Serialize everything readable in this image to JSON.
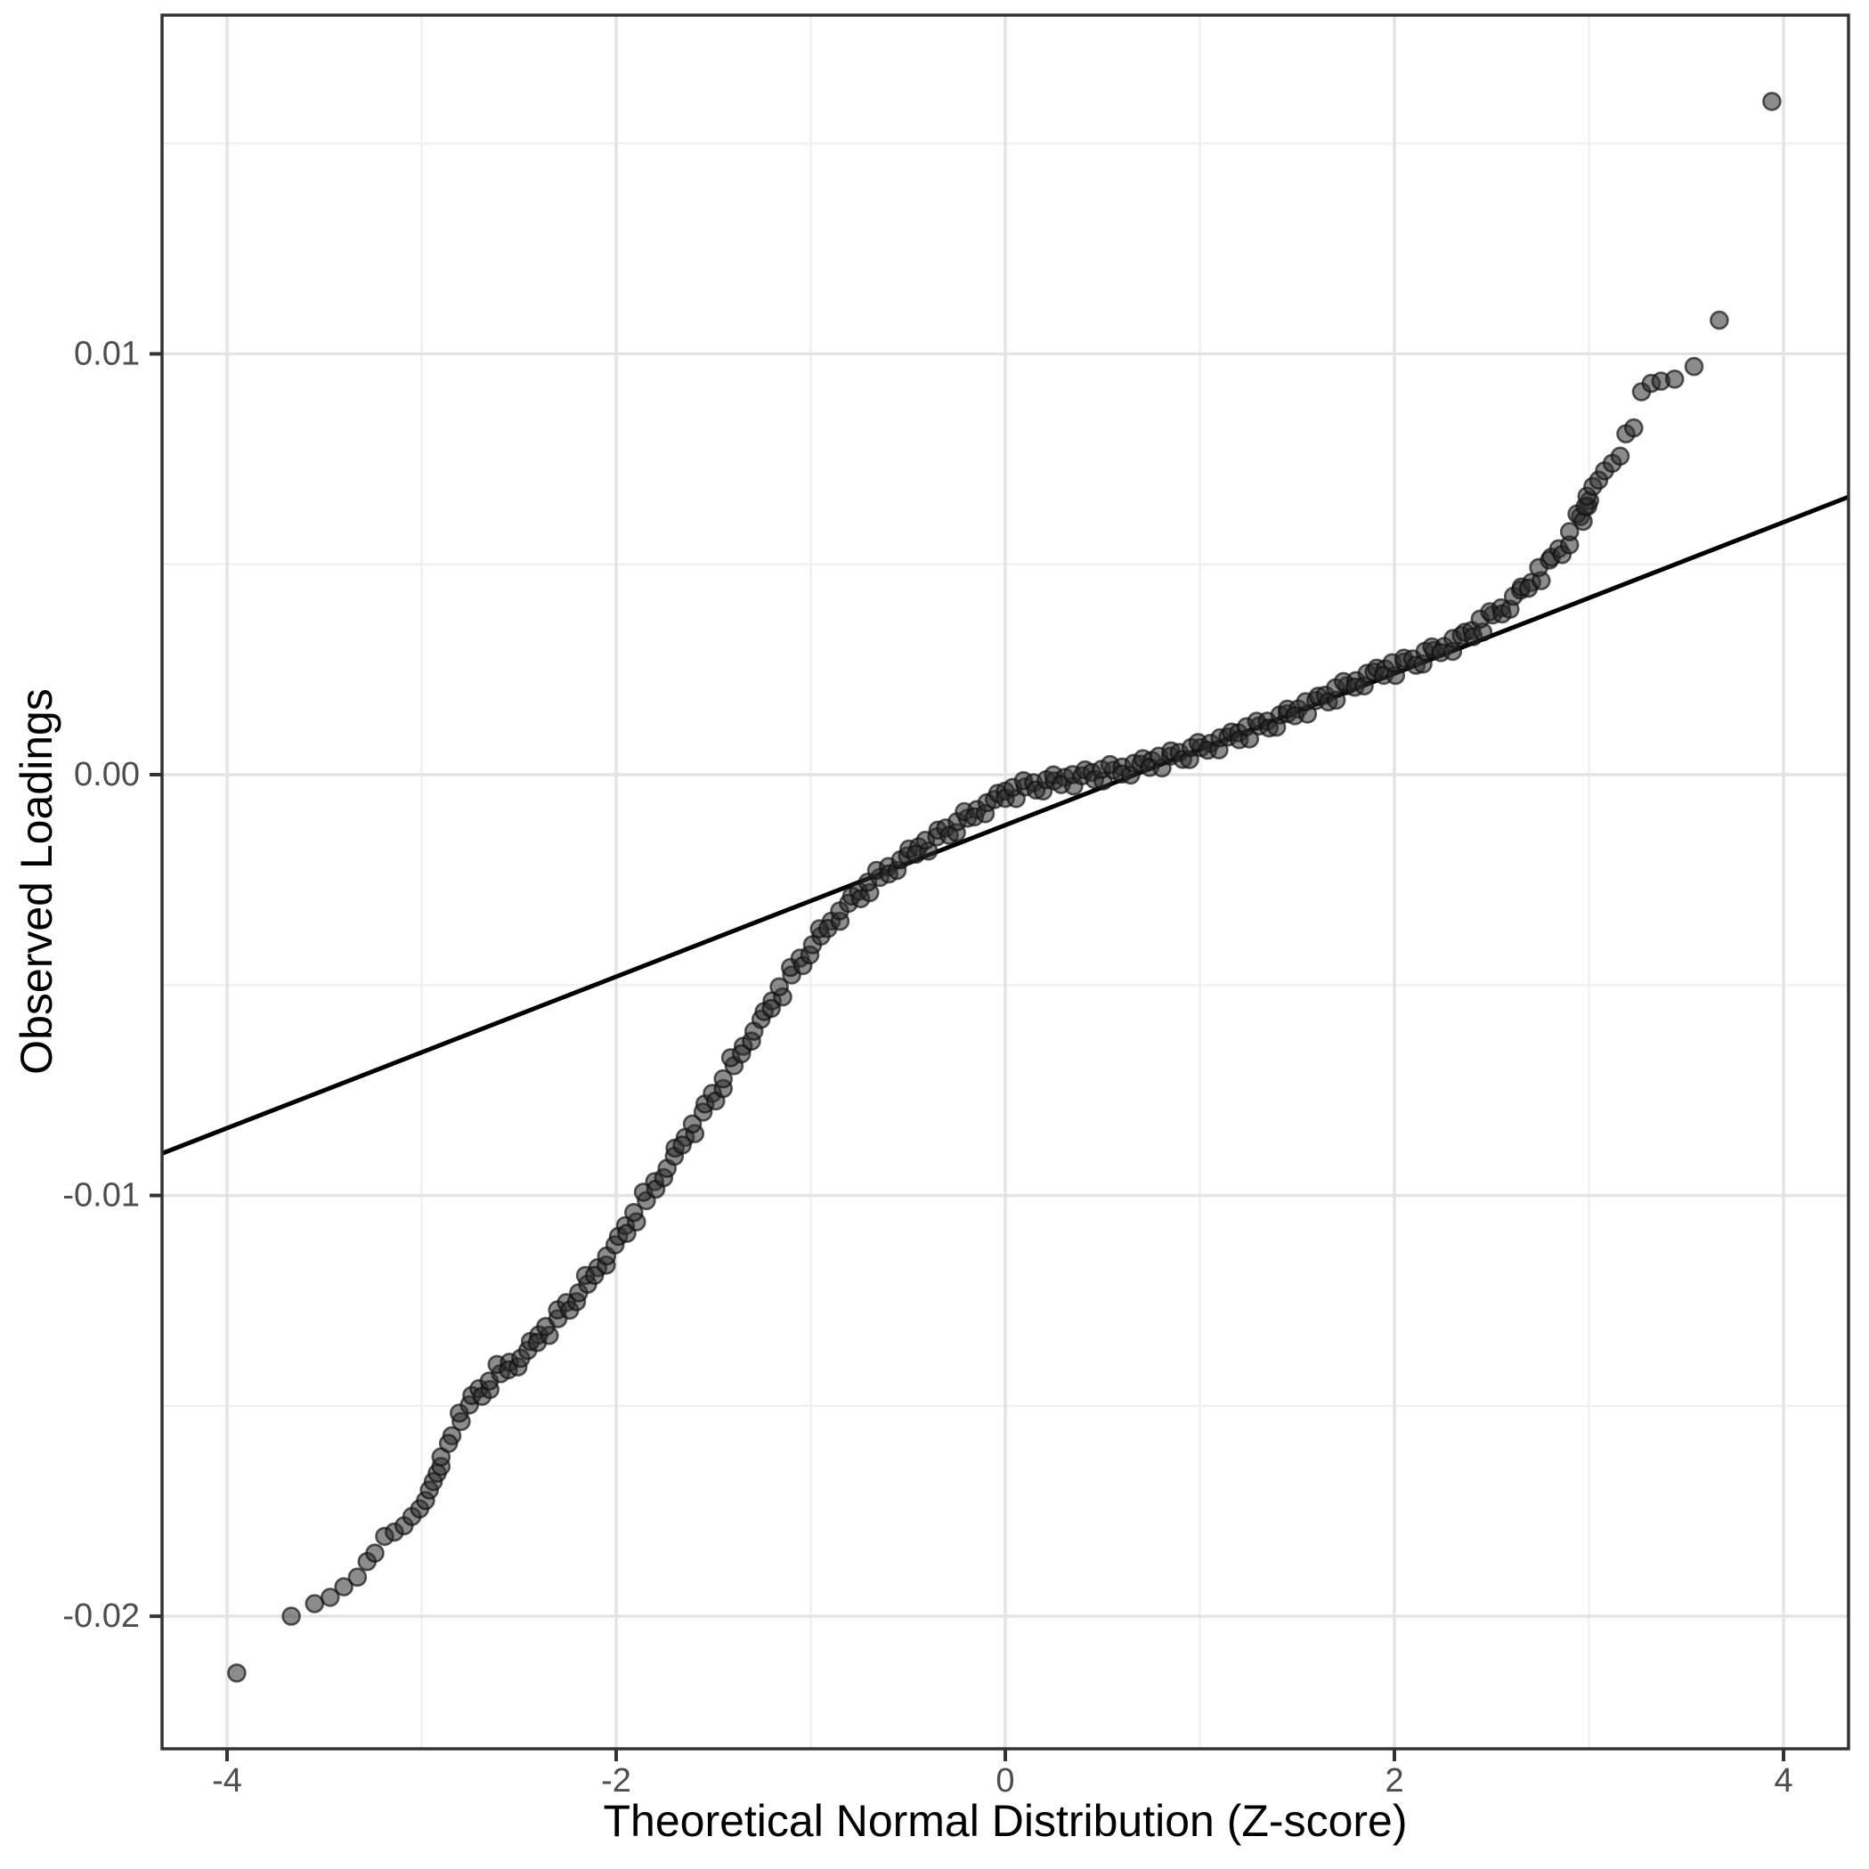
{
  "chart_data": {
    "type": "scatter",
    "title": "",
    "xlabel": "Theoretical Normal Distribution (Z-score)",
    "ylabel": "Observed Loadings",
    "x_tick_values": [
      -4,
      -2,
      0,
      2,
      4
    ],
    "x_tick_labels": [
      "-4",
      "-2",
      "0",
      "2",
      "4"
    ],
    "y_tick_values": [
      0.01,
      0.0,
      -0.01,
      -0.02
    ],
    "y_tick_labels": [
      "0.01",
      "0.00",
      "-0.01",
      "-0.02"
    ],
    "x_minor_gridlines": [
      -3,
      -1,
      1,
      3
    ],
    "y_minor_gridlines": [
      0.015,
      0.005,
      -0.005,
      -0.015
    ],
    "xlim": [
      -4.334,
      4.334
    ],
    "ylim": [
      -0.02315,
      0.01805
    ],
    "grid": "major+minor",
    "legend": "none",
    "point_color": "#2e2e2e",
    "line_color": "#000000",
    "reference_line": {
      "intercept": -0.0012,
      "slope": 0.0018
    },
    "series": [
      {
        "name": "observed-vs-theoretical-quantiles",
        "lower_tail_points": [
          [
            -3.95,
            -0.02135
          ],
          [
            -3.67,
            -0.02
          ],
          [
            -3.55,
            -0.0197
          ],
          [
            -3.47,
            -0.01955
          ],
          [
            -3.4,
            -0.0193
          ],
          [
            -3.33,
            -0.01907
          ],
          [
            -3.28,
            -0.0187
          ],
          [
            -3.24,
            -0.0185
          ],
          [
            -3.19,
            -0.0181
          ],
          [
            -3.14,
            -0.018
          ],
          [
            -3.09,
            -0.01785
          ],
          [
            -3.05,
            -0.01763
          ],
          [
            -3.01,
            -0.01745
          ],
          [
            -2.98,
            -0.01725
          ],
          [
            -2.96,
            -0.017
          ],
          [
            -2.94,
            -0.0168
          ],
          [
            -2.92,
            -0.0166
          ]
        ],
        "band_points": [
          [
            -2.9,
            -0.0164
          ],
          [
            -2.85,
            -0.0158
          ],
          [
            -2.8,
            -0.0152
          ],
          [
            -2.75,
            -0.01494
          ],
          [
            -2.7,
            -0.01468
          ],
          [
            -2.65,
            -0.01444
          ],
          [
            -2.6,
            -0.0142
          ],
          [
            -2.55,
            -0.01405
          ],
          [
            -2.5,
            -0.0139
          ],
          [
            -2.45,
            -0.01365
          ],
          [
            -2.4,
            -0.0134
          ],
          [
            -2.35,
            -0.01315
          ],
          [
            -2.3,
            -0.0129
          ],
          [
            -2.25,
            -0.01263
          ],
          [
            -2.2,
            -0.01235
          ],
          [
            -2.15,
            -0.01208
          ],
          [
            -2.1,
            -0.0118
          ],
          [
            -2.05,
            -0.01148
          ],
          [
            -2.0,
            -0.01115
          ],
          [
            -1.95,
            -0.0108
          ],
          [
            -1.9,
            -0.01045
          ],
          [
            -1.85,
            -0.0101
          ],
          [
            -1.8,
            -0.00975
          ],
          [
            -1.75,
            -0.0094
          ],
          [
            -1.7,
            -0.00905
          ],
          [
            -1.65,
            -0.0087
          ],
          [
            -1.6,
            -0.00835
          ],
          [
            -1.55,
            -0.008
          ],
          [
            -1.5,
            -0.00765
          ],
          [
            -1.45,
            -0.00728
          ],
          [
            -1.4,
            -0.0069
          ],
          [
            -1.35,
            -0.00653
          ],
          [
            -1.3,
            -0.00615
          ],
          [
            -1.25,
            -0.0058
          ],
          [
            -1.2,
            -0.00545
          ],
          [
            -1.15,
            -0.0051
          ],
          [
            -1.1,
            -0.00475
          ],
          [
            -1.05,
            -0.00443
          ],
          [
            -1.0,
            -0.0041
          ],
          [
            -0.95,
            -0.00383
          ],
          [
            -0.9,
            -0.00355
          ],
          [
            -0.85,
            -0.0033
          ],
          [
            -0.8,
            -0.00305
          ],
          [
            -0.75,
            -0.00284
          ],
          [
            -0.7,
            -0.00262
          ],
          [
            -0.65,
            -0.00244
          ],
          [
            -0.6,
            -0.00225
          ],
          [
            -0.55,
            -0.00209
          ],
          [
            -0.5,
            -0.00193
          ],
          [
            -0.45,
            -0.00178
          ],
          [
            -0.4,
            -0.00163
          ],
          [
            -0.35,
            -0.00148
          ],
          [
            -0.3,
            -0.00133
          ],
          [
            -0.25,
            -0.00119
          ],
          [
            -0.2,
            -0.00104
          ],
          [
            -0.15,
            -0.00089
          ],
          [
            -0.1,
            -0.00074
          ],
          [
            -0.05,
            -0.0006
          ],
          [
            0.0,
            -0.00045
          ],
          [
            0.05,
            -0.00038
          ],
          [
            0.1,
            -0.0003
          ],
          [
            0.15,
            -0.00025
          ],
          [
            0.2,
            -0.0002
          ],
          [
            0.25,
            -0.00016
          ],
          [
            0.3,
            -0.00012
          ],
          [
            0.35,
            -8e-05
          ],
          [
            0.4,
            -4e-05
          ],
          [
            0.45,
            0.0
          ],
          [
            0.5,
            4e-05
          ],
          [
            0.55,
            9e-05
          ],
          [
            0.6,
            0.00013
          ],
          [
            0.65,
            0.00018
          ],
          [
            0.7,
            0.00023
          ],
          [
            0.75,
            0.00029
          ],
          [
            0.8,
            0.00035
          ],
          [
            0.85,
            0.00042
          ],
          [
            0.9,
            0.00048
          ],
          [
            0.95,
            0.00055
          ],
          [
            1.0,
            0.00062
          ],
          [
            1.05,
            0.0007
          ],
          [
            1.1,
            0.00078
          ],
          [
            1.15,
            0.00087
          ],
          [
            1.2,
            0.00095
          ],
          [
            1.25,
            0.00104
          ],
          [
            1.3,
            0.00113
          ],
          [
            1.35,
            0.00123
          ],
          [
            1.4,
            0.00132
          ],
          [
            1.45,
            0.00142
          ],
          [
            1.5,
            0.00152
          ],
          [
            1.55,
            0.00163
          ],
          [
            1.6,
            0.00173
          ],
          [
            1.65,
            0.00185
          ],
          [
            1.7,
            0.00196
          ],
          [
            1.75,
            0.00208
          ],
          [
            1.8,
            0.0022
          ],
          [
            1.85,
            0.0023
          ],
          [
            1.9,
            0.0024
          ],
          [
            1.95,
            0.00248
          ],
          [
            2.0,
            0.00255
          ],
          [
            2.05,
            0.00264
          ],
          [
            2.1,
            0.00272
          ],
          [
            2.15,
            0.00282
          ],
          [
            2.2,
            0.00291
          ],
          [
            2.25,
            0.00302
          ],
          [
            2.3,
            0.00312
          ],
          [
            2.35,
            0.00326
          ],
          [
            2.4,
            0.0034
          ],
          [
            2.45,
            0.00358
          ],
          [
            2.5,
            0.00375
          ],
          [
            2.55,
            0.00394
          ],
          [
            2.6,
            0.00412
          ],
          [
            2.65,
            0.00434
          ],
          [
            2.7,
            0.00455
          ],
          [
            2.75,
            0.0048
          ],
          [
            2.8,
            0.00505
          ],
          [
            2.85,
            0.00535
          ],
          [
            2.9,
            0.00565
          ],
          [
            2.95,
            0.00608
          ],
          [
            3.0,
            0.0065
          ]
        ],
        "upper_tail_points": [
          [
            2.97,
            0.00602
          ],
          [
            2.98,
            0.00637
          ],
          [
            2.99,
            0.00662
          ],
          [
            3.02,
            0.00685
          ],
          [
            3.05,
            0.007
          ],
          [
            3.08,
            0.00722
          ],
          [
            3.12,
            0.0074
          ],
          [
            3.16,
            0.00757
          ],
          [
            3.19,
            0.0081
          ],
          [
            3.23,
            0.00824
          ],
          [
            3.27,
            0.0091
          ],
          [
            3.32,
            0.0093
          ],
          [
            3.37,
            0.00935
          ],
          [
            3.44,
            0.0094
          ],
          [
            3.54,
            0.0097
          ],
          [
            3.67,
            0.0108
          ],
          [
            3.94,
            0.016
          ]
        ]
      }
    ]
  }
}
